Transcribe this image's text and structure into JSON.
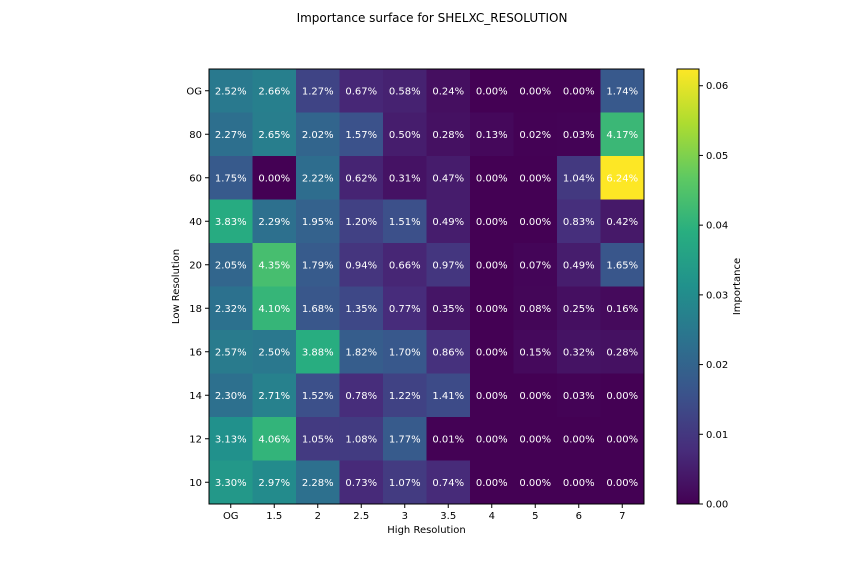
{
  "chart_data": {
    "type": "heatmap",
    "title": "Importance surface for SHELXC_RESOLUTION",
    "xlabel": "High Resolution",
    "ylabel": "Low Resolution",
    "x_categories": [
      "OG",
      "1.5",
      "2",
      "2.5",
      "3",
      "3.5",
      "4",
      "5",
      "6",
      "7"
    ],
    "y_categories": [
      "OG",
      "80",
      "60",
      "40",
      "20",
      "18",
      "16",
      "14",
      "12",
      "10"
    ],
    "values": [
      [
        0.0252,
        0.0266,
        0.0127,
        0.0067,
        0.0058,
        0.0024,
        0.0,
        0.0,
        0.0,
        0.0174
      ],
      [
        0.0227,
        0.0265,
        0.0202,
        0.0157,
        0.005,
        0.0028,
        0.0013,
        0.0002,
        0.0003,
        0.0417
      ],
      [
        0.0175,
        0.0,
        0.0222,
        0.0062,
        0.0031,
        0.0047,
        0.0,
        0.0,
        0.0104,
        0.0624
      ],
      [
        0.0383,
        0.0229,
        0.0195,
        0.012,
        0.0151,
        0.0049,
        0.0,
        0.0,
        0.0083,
        0.0042
      ],
      [
        0.0205,
        0.0435,
        0.0179,
        0.0094,
        0.0066,
        0.0097,
        0.0,
        0.0007,
        0.0049,
        0.0165
      ],
      [
        0.0232,
        0.041,
        0.0168,
        0.0135,
        0.0077,
        0.0035,
        0.0,
        0.0008,
        0.0025,
        0.0016
      ],
      [
        0.0257,
        0.025,
        0.0388,
        0.0182,
        0.017,
        0.0086,
        0.0,
        0.0015,
        0.0032,
        0.0028
      ],
      [
        0.023,
        0.0271,
        0.0152,
        0.0078,
        0.0122,
        0.0141,
        0.0,
        0.0,
        0.0003,
        0.0
      ],
      [
        0.0313,
        0.0406,
        0.0105,
        0.0108,
        0.0177,
        0.0001,
        0.0,
        0.0,
        0.0,
        0.0
      ],
      [
        0.033,
        0.0297,
        0.0228,
        0.0073,
        0.0107,
        0.0074,
        0.0,
        0.0,
        0.0,
        0.0
      ]
    ],
    "cell_labels": [
      [
        "2.52%",
        "2.66%",
        "1.27%",
        "0.67%",
        "0.58%",
        "0.24%",
        "0.00%",
        "0.00%",
        "0.00%",
        "1.74%"
      ],
      [
        "2.27%",
        "2.65%",
        "2.02%",
        "1.57%",
        "0.50%",
        "0.28%",
        "0.13%",
        "0.02%",
        "0.03%",
        "4.17%"
      ],
      [
        "1.75%",
        "0.00%",
        "2.22%",
        "0.62%",
        "0.31%",
        "0.47%",
        "0.00%",
        "0.00%",
        "1.04%",
        "6.24%"
      ],
      [
        "3.83%",
        "2.29%",
        "1.95%",
        "1.20%",
        "1.51%",
        "0.49%",
        "0.00%",
        "0.00%",
        "0.83%",
        "0.42%"
      ],
      [
        "2.05%",
        "4.35%",
        "1.79%",
        "0.94%",
        "0.66%",
        "0.97%",
        "0.00%",
        "0.07%",
        "0.49%",
        "1.65%"
      ],
      [
        "2.32%",
        "4.10%",
        "1.68%",
        "1.35%",
        "0.77%",
        "0.35%",
        "0.00%",
        "0.08%",
        "0.25%",
        "0.16%"
      ],
      [
        "2.57%",
        "2.50%",
        "3.88%",
        "1.82%",
        "1.70%",
        "0.86%",
        "0.00%",
        "0.15%",
        "0.32%",
        "0.28%"
      ],
      [
        "2.30%",
        "2.71%",
        "1.52%",
        "0.78%",
        "1.22%",
        "1.41%",
        "0.00%",
        "0.00%",
        "0.03%",
        "0.00%"
      ],
      [
        "3.13%",
        "4.06%",
        "1.05%",
        "1.08%",
        "1.77%",
        "0.01%",
        "0.00%",
        "0.00%",
        "0.00%",
        "0.00%"
      ],
      [
        "3.30%",
        "2.97%",
        "2.28%",
        "0.73%",
        "1.07%",
        "0.74%",
        "0.00%",
        "0.00%",
        "0.00%",
        "0.00%"
      ]
    ],
    "colorbar": {
      "label": "Importance",
      "vmin": 0,
      "vmax": 0.0624,
      "ticks": [
        "0.00",
        "0.01",
        "0.02",
        "0.03",
        "0.04",
        "0.05",
        "0.06"
      ],
      "tick_values": [
        0,
        0.01,
        0.02,
        0.03,
        0.04,
        0.05,
        0.06
      ]
    },
    "colormap": "viridis",
    "label_color": "#ffffff",
    "grid": false
  }
}
